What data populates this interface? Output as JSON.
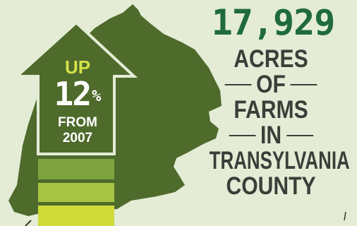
{
  "headline": {
    "number": "17,929",
    "lines": [
      "ACRES",
      "OF",
      "FARMS",
      "IN",
      "TRANSYLVANIA",
      "COUNTY"
    ]
  },
  "arrow": {
    "up_label": "UP",
    "percent_number": "12",
    "percent_sign": "%",
    "from_label": "FROM",
    "year_label": "2007"
  },
  "colors": {
    "background": "#e4ecd6",
    "map": "#4e6b2c",
    "arrow": "#4e6b2c",
    "headline_number": "#1f6b3b",
    "headline_text": "#3a3f39",
    "up_text": "#d7e14a",
    "bar_levels": [
      "#7ea33f",
      "#a7c444",
      "#cfdc3a"
    ]
  }
}
